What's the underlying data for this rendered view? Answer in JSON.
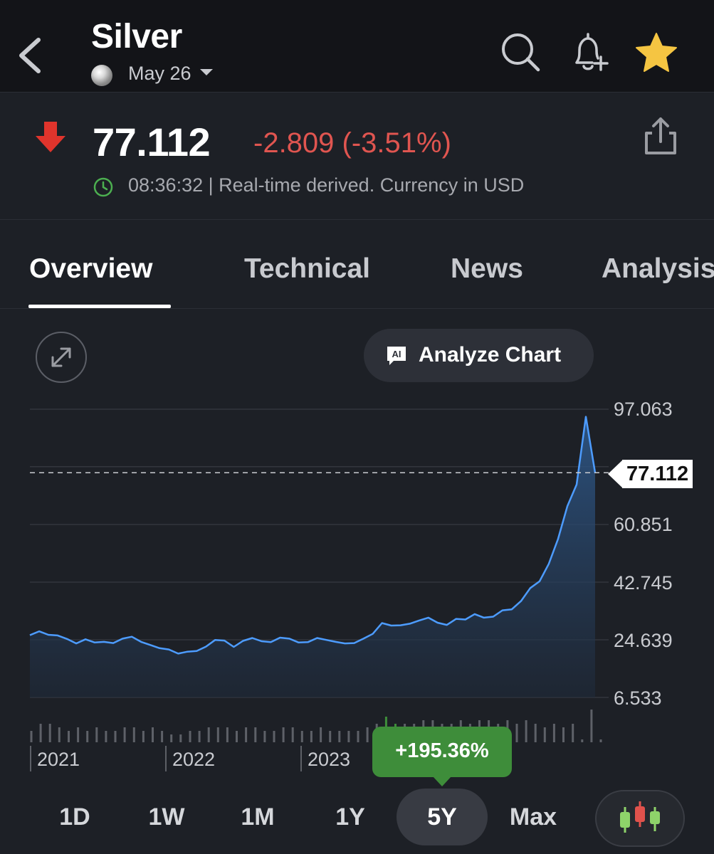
{
  "header": {
    "title": "Silver",
    "date_label": "May 26",
    "icons": {
      "back": "chevron-left-icon",
      "search": "search-icon",
      "alert": "bell-plus-icon",
      "favorite": "star-icon",
      "favorite_color": "#f5c542"
    }
  },
  "quote": {
    "price": "77.112",
    "change": "-2.809 (-3.51%)",
    "change_color": "#e05550",
    "direction_icon": "arrow-down-icon",
    "timestamp_text": "08:36:32 | Real-time derived. Currency in USD",
    "clock_color": "#4caf50"
  },
  "tabs": [
    {
      "label": "Overview",
      "active": true
    },
    {
      "label": "Technical",
      "active": false
    },
    {
      "label": "News",
      "active": false
    },
    {
      "label": "Analysis",
      "active": false
    }
  ],
  "chart_controls": {
    "analyze_label": "Analyze Chart"
  },
  "chart_data": {
    "type": "area",
    "line_color": "#4d9cff",
    "y_ticks": [
      "97.063",
      "60.851",
      "42.745",
      "24.639",
      "6.533"
    ],
    "y_tick_values": [
      97.063,
      60.851,
      42.745,
      24.639,
      6.533
    ],
    "ylim": [
      6.533,
      97.063
    ],
    "current_price": 77.112,
    "current_price_label": "77.112",
    "x_labels": [
      "2021",
      "2022",
      "2023"
    ],
    "values": [
      26.1,
      27.3,
      26.2,
      26.0,
      24.9,
      23.5,
      24.8,
      23.8,
      24.0,
      23.6,
      25.0,
      25.6,
      24.0,
      23.0,
      22.0,
      21.6,
      20.3,
      20.9,
      21.1,
      22.5,
      24.6,
      24.4,
      22.4,
      24.3,
      25.2,
      24.2,
      23.9,
      25.3,
      25.0,
      23.8,
      23.9,
      25.2,
      24.6,
      24.0,
      23.5,
      23.6,
      25.0,
      26.5,
      29.9,
      29.1,
      29.2,
      29.7,
      30.7,
      31.6,
      30.0,
      29.3,
      31.2,
      31.0,
      32.7,
      31.6,
      31.9,
      33.9,
      34.2,
      36.8,
      40.9,
      43.0,
      48.5,
      56.3,
      66.6,
      73.4,
      94.7,
      77.1
    ],
    "volume": [
      6,
      8,
      8,
      7,
      6,
      7,
      6,
      7,
      6,
      6,
      7,
      7,
      6,
      7,
      6,
      5,
      5,
      6,
      6,
      7,
      7,
      7,
      6,
      7,
      7,
      6,
      6,
      7,
      7,
      6,
      6,
      7,
      6,
      6,
      6,
      6,
      7,
      8,
      10,
      8,
      8,
      8,
      9,
      9,
      8,
      8,
      9,
      8,
      9,
      9,
      8,
      9,
      8,
      9,
      8,
      7,
      8,
      7,
      8,
      1,
      12,
      3
    ],
    "performance": "+195.36%"
  },
  "ranges": [
    {
      "label": "1D",
      "active": false
    },
    {
      "label": "1W",
      "active": false
    },
    {
      "label": "1M",
      "active": false
    },
    {
      "label": "1Y",
      "active": false
    },
    {
      "label": "5Y",
      "active": true
    },
    {
      "label": "Max",
      "active": false
    }
  ],
  "chart_type_icon": "candlestick-icon",
  "candle_colors": [
    "#8ed36a",
    "#e0524c",
    "#8ed36a"
  ]
}
